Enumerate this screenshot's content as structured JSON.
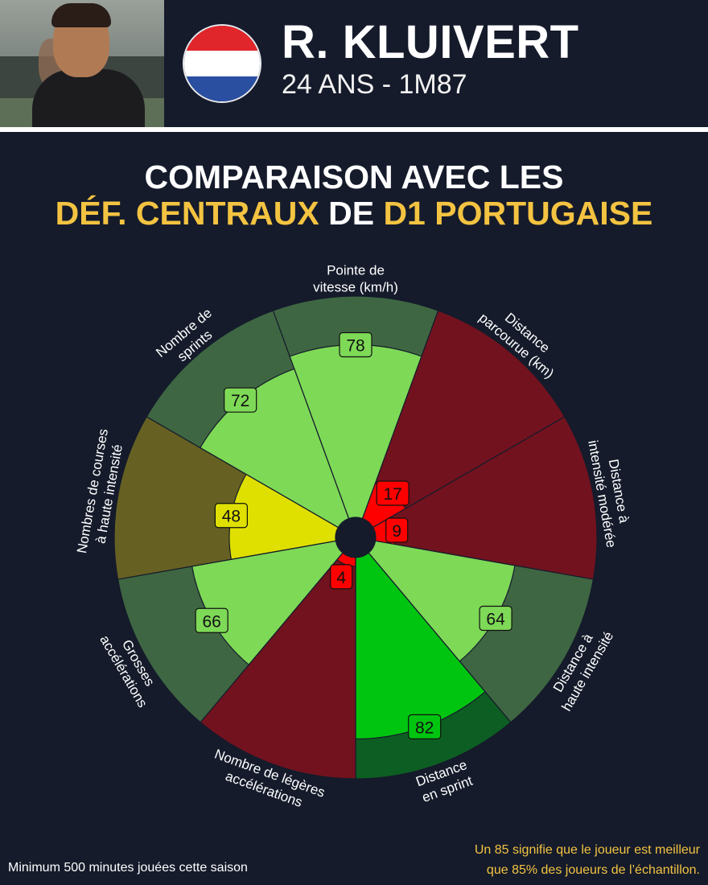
{
  "player": {
    "name": "R. KLUIVERT",
    "info": "24 ANS - 1M87",
    "flag_colors": [
      "#e0262b",
      "#ffffff",
      "#2a4fa1"
    ]
  },
  "title": {
    "line1": "COMPARAISON AVEC LES",
    "line2_part1": "DÉF. CENTRAUX",
    "line2_part2": " DE ",
    "line2_part3": "D1 PORTUGAISE"
  },
  "colors": {
    "background": "#151b2b",
    "accent": "#f3c341"
  },
  "chart_data": {
    "type": "polar-bar",
    "max": 100,
    "categories": [
      {
        "label": [
          "Pointe de",
          "vitesse (km/h)"
        ],
        "value": 78,
        "bar_color": "#7ed957",
        "bg_color": "#3e6642"
      },
      {
        "label": [
          "Distance",
          "parcourue (km)"
        ],
        "value": 17,
        "bar_color": "#ff0000",
        "bg_color": "#72121e"
      },
      {
        "label": [
          "Distance à",
          "intensité modérée"
        ],
        "value": 9,
        "bar_color": "#ff0000",
        "bg_color": "#72121e"
      },
      {
        "label": [
          "Distance à",
          "haute intensité"
        ],
        "value": 64,
        "bar_color": "#7ed957",
        "bg_color": "#3e6642"
      },
      {
        "label": [
          "Distance",
          "en sprint"
        ],
        "value": 82,
        "bar_color": "#00c510",
        "bg_color": "#0d5e22"
      },
      {
        "label": [
          "Nombre de légères",
          "accélérations"
        ],
        "value": 4,
        "bar_color": "#ff0000",
        "bg_color": "#72121e"
      },
      {
        "label": [
          "Grosses",
          "accélérations"
        ],
        "value": 66,
        "bar_color": "#7ed957",
        "bg_color": "#3e6642"
      },
      {
        "label": [
          "Nombres de courses",
          "à haute intensité"
        ],
        "value": 48,
        "bar_color": "#dfe000",
        "bg_color": "#666122"
      },
      {
        "label": [
          "Nombre de",
          "sprints"
        ],
        "value": 72,
        "bar_color": "#7ed957",
        "bg_color": "#3e6642"
      }
    ]
  },
  "footnotes": {
    "left": "Minimum 500 minutes jouées cette saison",
    "right_line1": "Un 85 signifie que le joueur est meilleur",
    "right_line2": "que 85% des joueurs de l’échantillon."
  }
}
